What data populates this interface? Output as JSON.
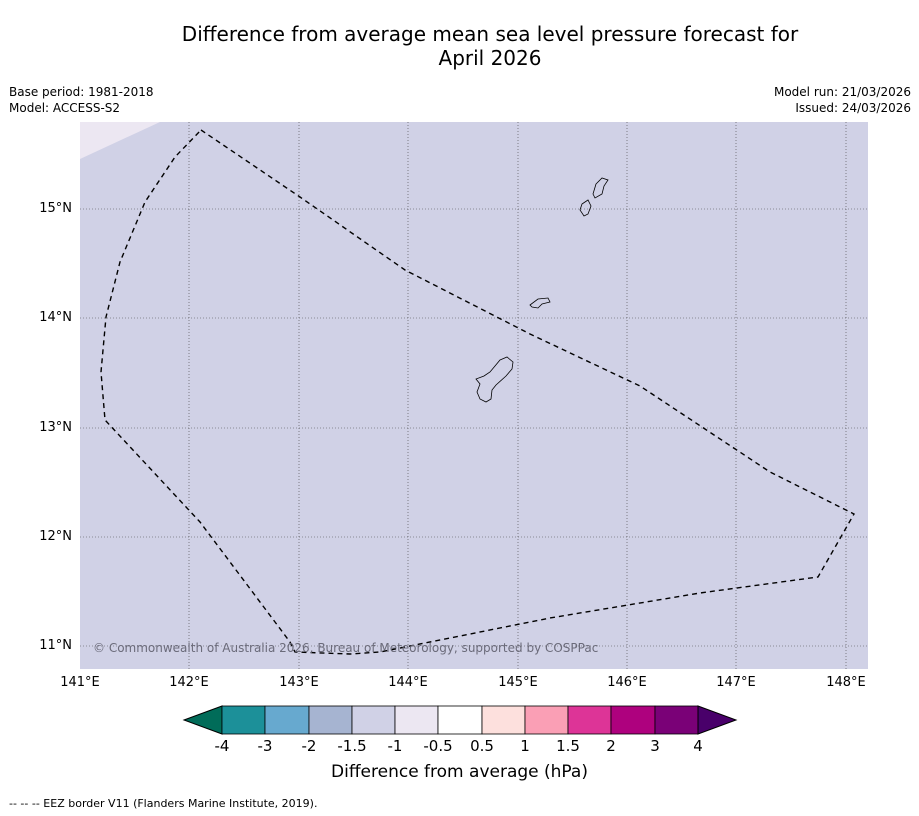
{
  "title_line1": "Difference from average mean sea level pressure forecast for",
  "title_line2": "April 2026",
  "meta": {
    "base_period": "Base period: 1981-2018",
    "model": "Model: ACCESS-S2",
    "model_run": "Model run: 21/03/2026",
    "issued": "Issued: 24/03/2026"
  },
  "map": {
    "lon_range": [
      141.0,
      148.2
    ],
    "lat_range": [
      10.8,
      15.8
    ],
    "lat_ticks": [
      "15°N",
      "14°N",
      "13°N",
      "12°N",
      "11°N"
    ],
    "lon_ticks": [
      "141°E",
      "142°E",
      "143°E",
      "144°E",
      "145°E",
      "146°E",
      "147°E",
      "148°E"
    ],
    "copyright": "© Commonwealth of Australia 2026, Bureau of Meteorology, supported by COSPPac",
    "background_color": "#d0d1e6",
    "corner_color": "#ece7f2"
  },
  "colorbar": {
    "title": "Difference from average (hPa)",
    "labels": [
      "-4",
      "-3",
      "-2",
      "-1.5",
      "-1",
      "-0.5",
      "0.5",
      "1",
      "1.5",
      "2",
      "3",
      "4"
    ],
    "colors": [
      "#1c9099",
      "#67a9cf",
      "#a6b4d1",
      "#d0d1e6",
      "#ece7f2",
      "#ffffff",
      "#fde0dd",
      "#fa9fb5",
      "#dd3497",
      "#ae017e",
      "#7a0177"
    ],
    "under_color": "#016c59",
    "over_color": "#49006a"
  },
  "legend": "--  --  -- EEZ border V11 (Flanders Marine Institute, 2019)."
}
